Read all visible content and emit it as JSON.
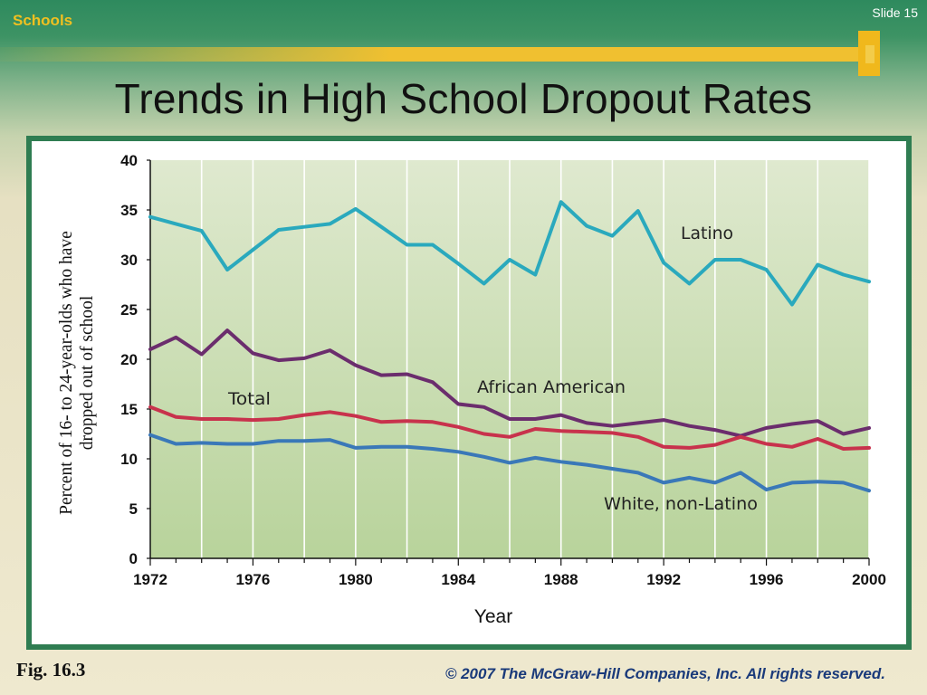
{
  "header": {
    "section_label": "Schools",
    "slide_label": "Slide 15",
    "title": "Trends in High School Dropout Rates"
  },
  "footer": {
    "figure_label": "Fig. 16.3",
    "copyright": "© 2007 The McGraw-Hill Companies, Inc. All rights reserved."
  },
  "colors": {
    "latino": "#2aa9bd",
    "african_american": "#6b2d6d",
    "total": "#c8324c",
    "white": "#3a78b8",
    "plot_bg_top": "#dfe9cf",
    "plot_bg_bottom": "#b8d39b",
    "frame": "#2f7d52"
  },
  "chart_data": {
    "type": "line",
    "title": "Trends in High School Dropout Rates",
    "xlabel": "Year",
    "ylabel": "Percent of 16- to 24-year-olds who have dropped out of school",
    "xlim": [
      1972,
      2000
    ],
    "ylim": [
      0,
      40
    ],
    "x_ticks": [
      "1972",
      "1976",
      "1980",
      "1984",
      "1988",
      "1992",
      "1996",
      "2000"
    ],
    "y_ticks": [
      "0",
      "5",
      "10",
      "15",
      "20",
      "25",
      "30",
      "35",
      "40"
    ],
    "grid": true,
    "x": [
      1972,
      1973,
      1974,
      1975,
      1976,
      1977,
      1978,
      1979,
      1980,
      1981,
      1982,
      1983,
      1984,
      1985,
      1986,
      1987,
      1988,
      1989,
      1990,
      1991,
      1992,
      1993,
      1994,
      1995,
      1996,
      1997,
      1998,
      1999,
      2000
    ],
    "series": [
      {
        "name": "Latino",
        "color_key": "latino",
        "values": [
          34.3,
          33.6,
          32.9,
          29.0,
          31.0,
          33.0,
          33.3,
          33.6,
          35.1,
          33.3,
          31.5,
          31.5,
          29.6,
          27.6,
          30.0,
          28.5,
          35.8,
          33.4,
          32.4,
          34.9,
          29.7,
          27.6,
          30.0,
          30.0,
          29.0,
          25.5,
          29.5,
          28.5,
          27.8
        ]
      },
      {
        "name": "African American",
        "color_key": "african_american",
        "values": [
          21.0,
          22.2,
          20.5,
          22.9,
          20.6,
          19.9,
          20.1,
          20.9,
          19.4,
          18.4,
          18.5,
          17.7,
          15.5,
          15.2,
          14.0,
          14.0,
          14.4,
          13.6,
          13.3,
          13.6,
          13.9,
          13.3,
          12.9,
          12.3,
          13.1,
          13.5,
          13.8,
          12.5,
          13.1
        ]
      },
      {
        "name": "Total",
        "color_key": "total",
        "values": [
          15.2,
          14.2,
          14.0,
          14.0,
          13.9,
          14.0,
          14.4,
          14.7,
          14.3,
          13.7,
          13.8,
          13.7,
          13.2,
          12.5,
          12.2,
          13.0,
          12.8,
          12.7,
          12.6,
          12.2,
          11.2,
          11.1,
          11.4,
          12.2,
          11.5,
          11.2,
          12.0,
          11.0,
          11.1
        ]
      },
      {
        "name": "White, non-Latino",
        "color_key": "white",
        "values": [
          12.4,
          11.5,
          11.6,
          11.5,
          11.5,
          11.8,
          11.8,
          11.9,
          11.1,
          11.2,
          11.2,
          11.0,
          10.7,
          10.2,
          9.6,
          10.1,
          9.7,
          9.4,
          9.0,
          8.6,
          7.6,
          8.1,
          7.6,
          8.6,
          6.9,
          7.6,
          7.7,
          7.6,
          6.8
        ]
      }
    ]
  }
}
